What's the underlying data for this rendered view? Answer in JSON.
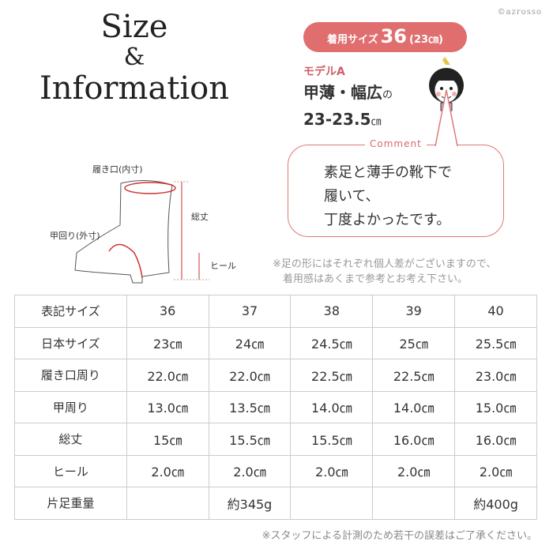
{
  "title": {
    "line1": "Size",
    "line2": "&",
    "line3": "Information"
  },
  "copyright": "©azrosso",
  "fit": {
    "label": "着用サイズ",
    "size": "36",
    "cm": "(23㎝)"
  },
  "model": {
    "name": "モデルA",
    "foot": "甲薄・幅広",
    "no": "の",
    "range": "23-23.5",
    "unit": "㎝"
  },
  "comment": {
    "label": "Comment",
    "lines": [
      "素足と薄手の靴下で",
      "履いて、",
      "丁度よかったです。"
    ]
  },
  "diagram": {
    "opening": "履き口(内寸)",
    "instep": "甲回り(外寸)",
    "height": "総丈",
    "heel": "ヒール"
  },
  "note": [
    "※足の形にはそれぞれ個人差がございますので、",
    "着用感はあくまで参考とお考え下さい。"
  ],
  "table": {
    "rows": [
      {
        "label": "表記サイズ",
        "cells": [
          "36",
          "37",
          "38",
          "39",
          "40"
        ]
      },
      {
        "label": "日本サイズ",
        "cells": [
          "23㎝",
          "24㎝",
          "24.5㎝",
          "25㎝",
          "25.5㎝"
        ]
      },
      {
        "label": "履き口周り",
        "cells": [
          "22.0㎝",
          "22.0㎝",
          "22.5㎝",
          "22.5㎝",
          "23.0㎝"
        ]
      },
      {
        "label": "甲周り",
        "cells": [
          "13.0㎝",
          "13.5㎝",
          "14.0㎝",
          "14.0㎝",
          "15.0㎝"
        ]
      },
      {
        "label": "総丈",
        "cells": [
          "15㎝",
          "15.5㎝",
          "15.5㎝",
          "16.0㎝",
          "16.0㎝"
        ]
      },
      {
        "label": "ヒール",
        "cells": [
          "2.0㎝",
          "2.0㎝",
          "2.0㎝",
          "2.0㎝",
          "2.0㎝"
        ]
      },
      {
        "label": "片足重量",
        "cells": [
          "",
          "約345g",
          "",
          "",
          "約400g"
        ]
      }
    ]
  },
  "footnote": "※スタッフによる計測のため若干の誤差はご了承ください。",
  "colors": {
    "accent": "#e06e6e",
    "border": "#cccccc"
  }
}
